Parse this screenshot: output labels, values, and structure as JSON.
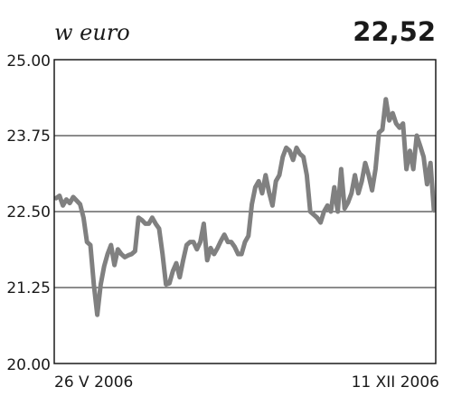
{
  "header": {
    "unit_label": "w euro",
    "last_value": "22,52"
  },
  "chart_data": {
    "type": "line",
    "title": "",
    "xlabel": "",
    "ylabel": "w euro",
    "ylim": [
      20.0,
      25.0
    ],
    "yticks": [
      "20.00",
      "21.25",
      "22.50",
      "23.75",
      "25.00"
    ],
    "ytick_values": [
      20.0,
      21.25,
      22.5,
      23.75,
      25.0
    ],
    "x_start_label": "26 V 2006",
    "x_end_label": "11 XII 2006",
    "grid": "horizontal",
    "line_color": "#808080",
    "series": [
      {
        "values": [
          22.72,
          22.76,
          22.6,
          22.7,
          22.64,
          22.74,
          22.68,
          22.62,
          22.4,
          22.0,
          21.95,
          21.3,
          20.8,
          21.3,
          21.6,
          21.8,
          21.95,
          21.62,
          21.88,
          21.8,
          21.75,
          21.78,
          21.8,
          21.85,
          22.4,
          22.36,
          22.3,
          22.3,
          22.4,
          22.3,
          22.22,
          21.8,
          21.3,
          21.32,
          21.52,
          21.65,
          21.42,
          21.7,
          21.95,
          22.0,
          22.0,
          21.88,
          22.0,
          22.3,
          21.7,
          21.9,
          21.8,
          21.9,
          22.02,
          22.12,
          22.0,
          22.0,
          21.92,
          21.8,
          21.8,
          22.0,
          22.1,
          22.62,
          22.9,
          23.0,
          22.8,
          23.1,
          22.82,
          22.6,
          23.0,
          23.1,
          23.4,
          23.55,
          23.5,
          23.35,
          23.55,
          23.45,
          23.4,
          23.1,
          22.5,
          22.45,
          22.4,
          22.32,
          22.5,
          22.6,
          22.5,
          22.9,
          22.5,
          23.2,
          22.55,
          22.65,
          22.8,
          23.1,
          22.8,
          23.0,
          23.3,
          23.1,
          22.85,
          23.2,
          23.8,
          23.85,
          24.35,
          24.0,
          24.12,
          23.95,
          23.88,
          23.95,
          23.2,
          23.5,
          23.2,
          23.75,
          23.58,
          23.4,
          22.95,
          23.3,
          22.52
        ]
      }
    ]
  }
}
